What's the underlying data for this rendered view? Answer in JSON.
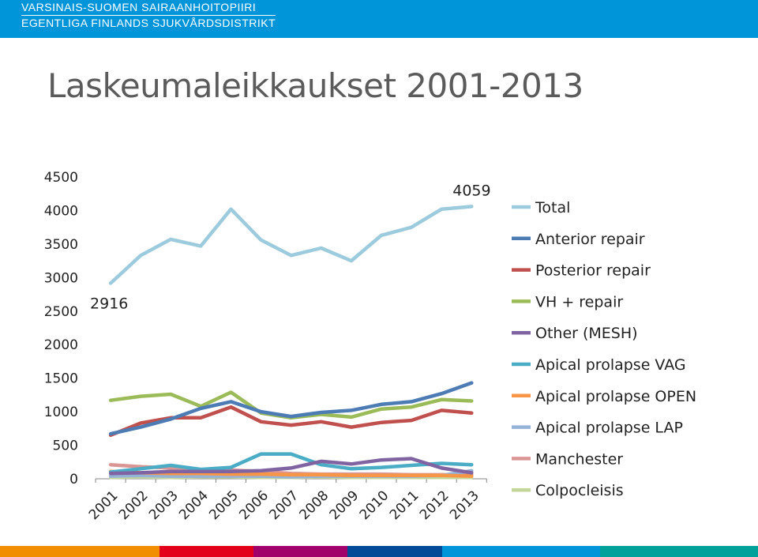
{
  "header": {
    "org_fi": "VARSINAIS-SUOMEN SAIRAANHOITOPIIRI",
    "org_sv": "EGENTLIGA FINLANDS SJUKVÅRDSDISTRIKT",
    "bg_color": "#0095d9"
  },
  "slide": {
    "title": "Laskeumaleikkaukset 2001-2013"
  },
  "chart_data": {
    "type": "line",
    "title": "",
    "xlabel": "",
    "ylabel": "",
    "categories": [
      "2001",
      "2002",
      "2003",
      "2004",
      "2005",
      "2006",
      "2007",
      "2008",
      "2009",
      "2010",
      "2011",
      "2012",
      "2013"
    ],
    "ylim": [
      0,
      4500
    ],
    "yticks": [
      0,
      500,
      1000,
      1500,
      2000,
      2500,
      3000,
      3500,
      4000,
      4500
    ],
    "grid": false,
    "legend_position": "right",
    "annotations": [
      {
        "text": "2916",
        "series": "Total",
        "category": "2001"
      },
      {
        "text": "4059",
        "series": "Total",
        "category": "2013"
      }
    ],
    "series": [
      {
        "name": "Total",
        "color": "#9dcbde",
        "values": [
          2916,
          3330,
          3570,
          3470,
          4020,
          3560,
          3330,
          3440,
          3250,
          3630,
          3750,
          4020,
          4059
        ]
      },
      {
        "name": "Anterior repair",
        "color": "#4d7cb4",
        "values": [
          670,
          770,
          890,
          1050,
          1150,
          1000,
          930,
          990,
          1020,
          1110,
          1150,
          1270,
          1430
        ]
      },
      {
        "name": "Posterior repair",
        "color": "#c0504d",
        "values": [
          650,
          830,
          910,
          910,
          1070,
          850,
          800,
          850,
          770,
          840,
          870,
          1020,
          980
        ]
      },
      {
        "name": "VH + repair",
        "color": "#9bbb59",
        "values": [
          1170,
          1230,
          1260,
          1080,
          1290,
          980,
          910,
          960,
          920,
          1040,
          1070,
          1180,
          1160
        ]
      },
      {
        "name": "Other (MESH)",
        "color": "#8064a2",
        "values": [
          80,
          90,
          110,
          110,
          110,
          120,
          160,
          260,
          220,
          280,
          300,
          160,
          90
        ]
      },
      {
        "name": "Apical prolapse VAG",
        "color": "#4bacc6",
        "values": [
          100,
          150,
          200,
          140,
          170,
          370,
          370,
          210,
          150,
          170,
          200,
          230,
          210
        ]
      },
      {
        "name": "Apical prolapse OPEN",
        "color": "#f79646",
        "values": [
          110,
          90,
          80,
          80,
          70,
          70,
          60,
          60,
          50,
          50,
          50,
          50,
          40
        ]
      },
      {
        "name": "Apical prolapse LAP",
        "color": "#95b3d7",
        "values": [
          40,
          50,
          40,
          40,
          40,
          40,
          30,
          40,
          40,
          40,
          40,
          50,
          120
        ]
      },
      {
        "name": "Manchester",
        "color": "#da9694",
        "values": [
          210,
          180,
          160,
          140,
          130,
          110,
          80,
          70,
          70,
          70,
          60,
          60,
          60
        ]
      },
      {
        "name": "Colpocleisis",
        "color": "#c4d79b",
        "values": [
          20,
          30,
          20,
          30,
          30,
          20,
          20,
          30,
          20,
          20,
          20,
          20,
          20
        ]
      }
    ]
  },
  "footer": {
    "colors": [
      "#f18e00",
      "#e3001b",
      "#a1006b",
      "#004a98",
      "#0095d9",
      "#00a19a"
    ]
  }
}
